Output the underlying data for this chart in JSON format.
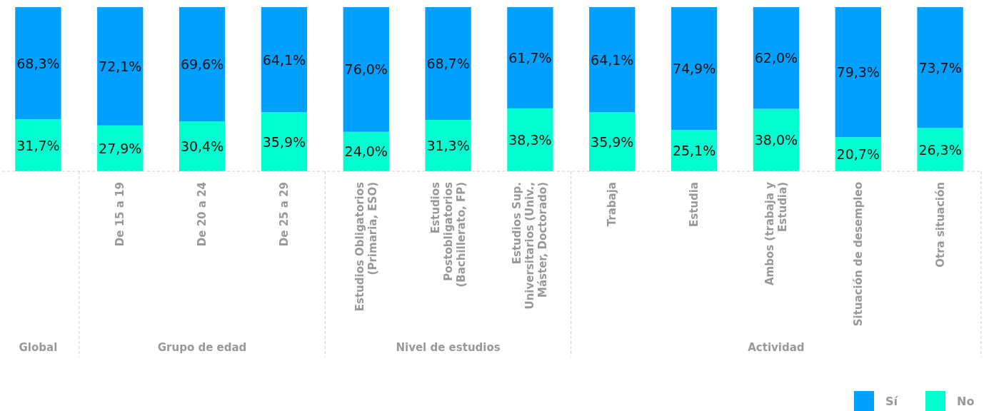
{
  "chart_data": {
    "type": "bar",
    "stacked": true,
    "legend": "bottom right",
    "categories": [
      null,
      "De 15 a 19",
      "De 20 a 24",
      "De 25 a 29",
      "Estudios Obligatorios (Primaria, ESO)",
      "Estudios Postobligatorios (Bachillerato, FP)",
      "Estudios Sup. Universitarios (Univ., Máster, Doctorado)",
      "Trabaja",
      "Estudia",
      "Ambos (trabaja y Estudia)",
      "Situación de desempleo",
      "Otra situación"
    ],
    "series": [
      {
        "name": "No",
        "color": "#00ffd0",
        "values": [
          31.7,
          27.9,
          30.4,
          35.9,
          24.0,
          31.3,
          38.3,
          35.9,
          25.1,
          38.0,
          20.7,
          26.3
        ],
        "value_labels": [
          "31,7%",
          "27,9%",
          "30,4%",
          "35,9%",
          "24,0%",
          "31,3%",
          "38,3%",
          "35,9%",
          "25,1%",
          "38,0%",
          "20,7%",
          "26,3%"
        ]
      },
      {
        "name": "Sí",
        "color": "#00a0ff",
        "values": [
          68.3,
          72.1,
          69.6,
          64.1,
          76.0,
          68.7,
          61.7,
          64.1,
          74.9,
          62.0,
          79.3,
          73.7
        ],
        "value_labels": [
          "68,3%",
          "72,1%",
          "69,6%",
          "64,1%",
          "76,0%",
          "68,7%",
          "61,7%",
          "64,1%",
          "74,9%",
          "62,0%",
          "79,3%",
          "73,7%"
        ]
      }
    ],
    "annotations": [
      "Global",
      "Grupo de edad",
      "Nivel de estudios",
      "Actividad"
    ]
  }
}
